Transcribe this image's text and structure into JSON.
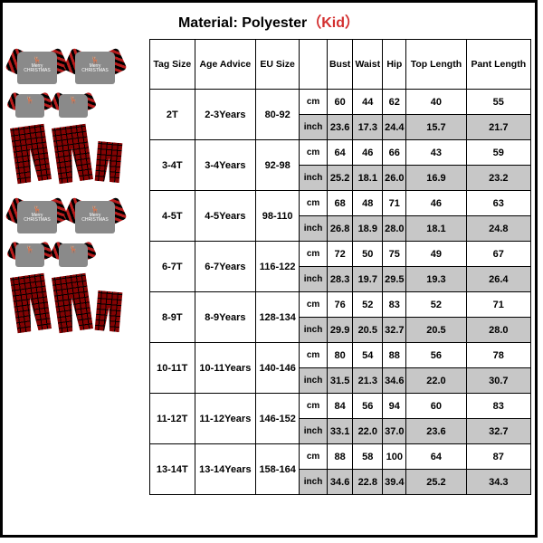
{
  "material_label": "Material: Polyester",
  "kid_label": "（Kid）",
  "headers": [
    "Tag Size",
    "Age Advice",
    "EU Size",
    "",
    "Bust",
    "Waist",
    "Hip",
    "Top Length",
    "Pant Length"
  ],
  "units": [
    "cm",
    "inch"
  ],
  "rows": [
    {
      "tag": "2T",
      "age": "2-3Years",
      "eu": "80-92",
      "cm": [
        "60",
        "44",
        "62",
        "40",
        "55"
      ],
      "inch": [
        "23.6",
        "17.3",
        "24.4",
        "15.7",
        "21.7"
      ]
    },
    {
      "tag": "3-4T",
      "age": "3-4Years",
      "eu": "92-98",
      "cm": [
        "64",
        "46",
        "66",
        "43",
        "59"
      ],
      "inch": [
        "25.2",
        "18.1",
        "26.0",
        "16.9",
        "23.2"
      ]
    },
    {
      "tag": "4-5T",
      "age": "4-5Years",
      "eu": "98-110",
      "cm": [
        "68",
        "48",
        "71",
        "46",
        "63"
      ],
      "inch": [
        "26.8",
        "18.9",
        "28.0",
        "18.1",
        "24.8"
      ]
    },
    {
      "tag": "6-7T",
      "age": "6-7Years",
      "eu": "116-122",
      "cm": [
        "72",
        "50",
        "75",
        "49",
        "67"
      ],
      "inch": [
        "28.3",
        "19.7",
        "29.5",
        "19.3",
        "26.4"
      ]
    },
    {
      "tag": "8-9T",
      "age": "8-9Years",
      "eu": "128-134",
      "cm": [
        "76",
        "52",
        "83",
        "52",
        "71"
      ],
      "inch": [
        "29.9",
        "20.5",
        "32.7",
        "20.5",
        "28.0"
      ]
    },
    {
      "tag": "10-11T",
      "age": "10-11Years",
      "eu": "140-146",
      "cm": [
        "80",
        "54",
        "88",
        "56",
        "78"
      ],
      "inch": [
        "31.5",
        "21.3",
        "34.6",
        "22.0",
        "30.7"
      ]
    },
    {
      "tag": "11-12T",
      "age": "11-12Years",
      "eu": "146-152",
      "cm": [
        "84",
        "56",
        "94",
        "60",
        "83"
      ],
      "inch": [
        "33.1",
        "22.0",
        "37.0",
        "23.6",
        "32.7"
      ]
    },
    {
      "tag": "13-14T",
      "age": "13-14Years",
      "eu": "158-164",
      "cm": [
        "88",
        "58",
        "100",
        "64",
        "87"
      ],
      "inch": [
        "34.6",
        "22.8",
        "39.4",
        "25.2",
        "34.3"
      ]
    }
  ],
  "colors": {
    "accent": "#d32f2f",
    "alt_row": "#c7c7c7",
    "border": "#000000",
    "plaid_red": "#b71c1c",
    "plaid_black": "#000000",
    "shirt_grey": "#8a8a8a"
  }
}
